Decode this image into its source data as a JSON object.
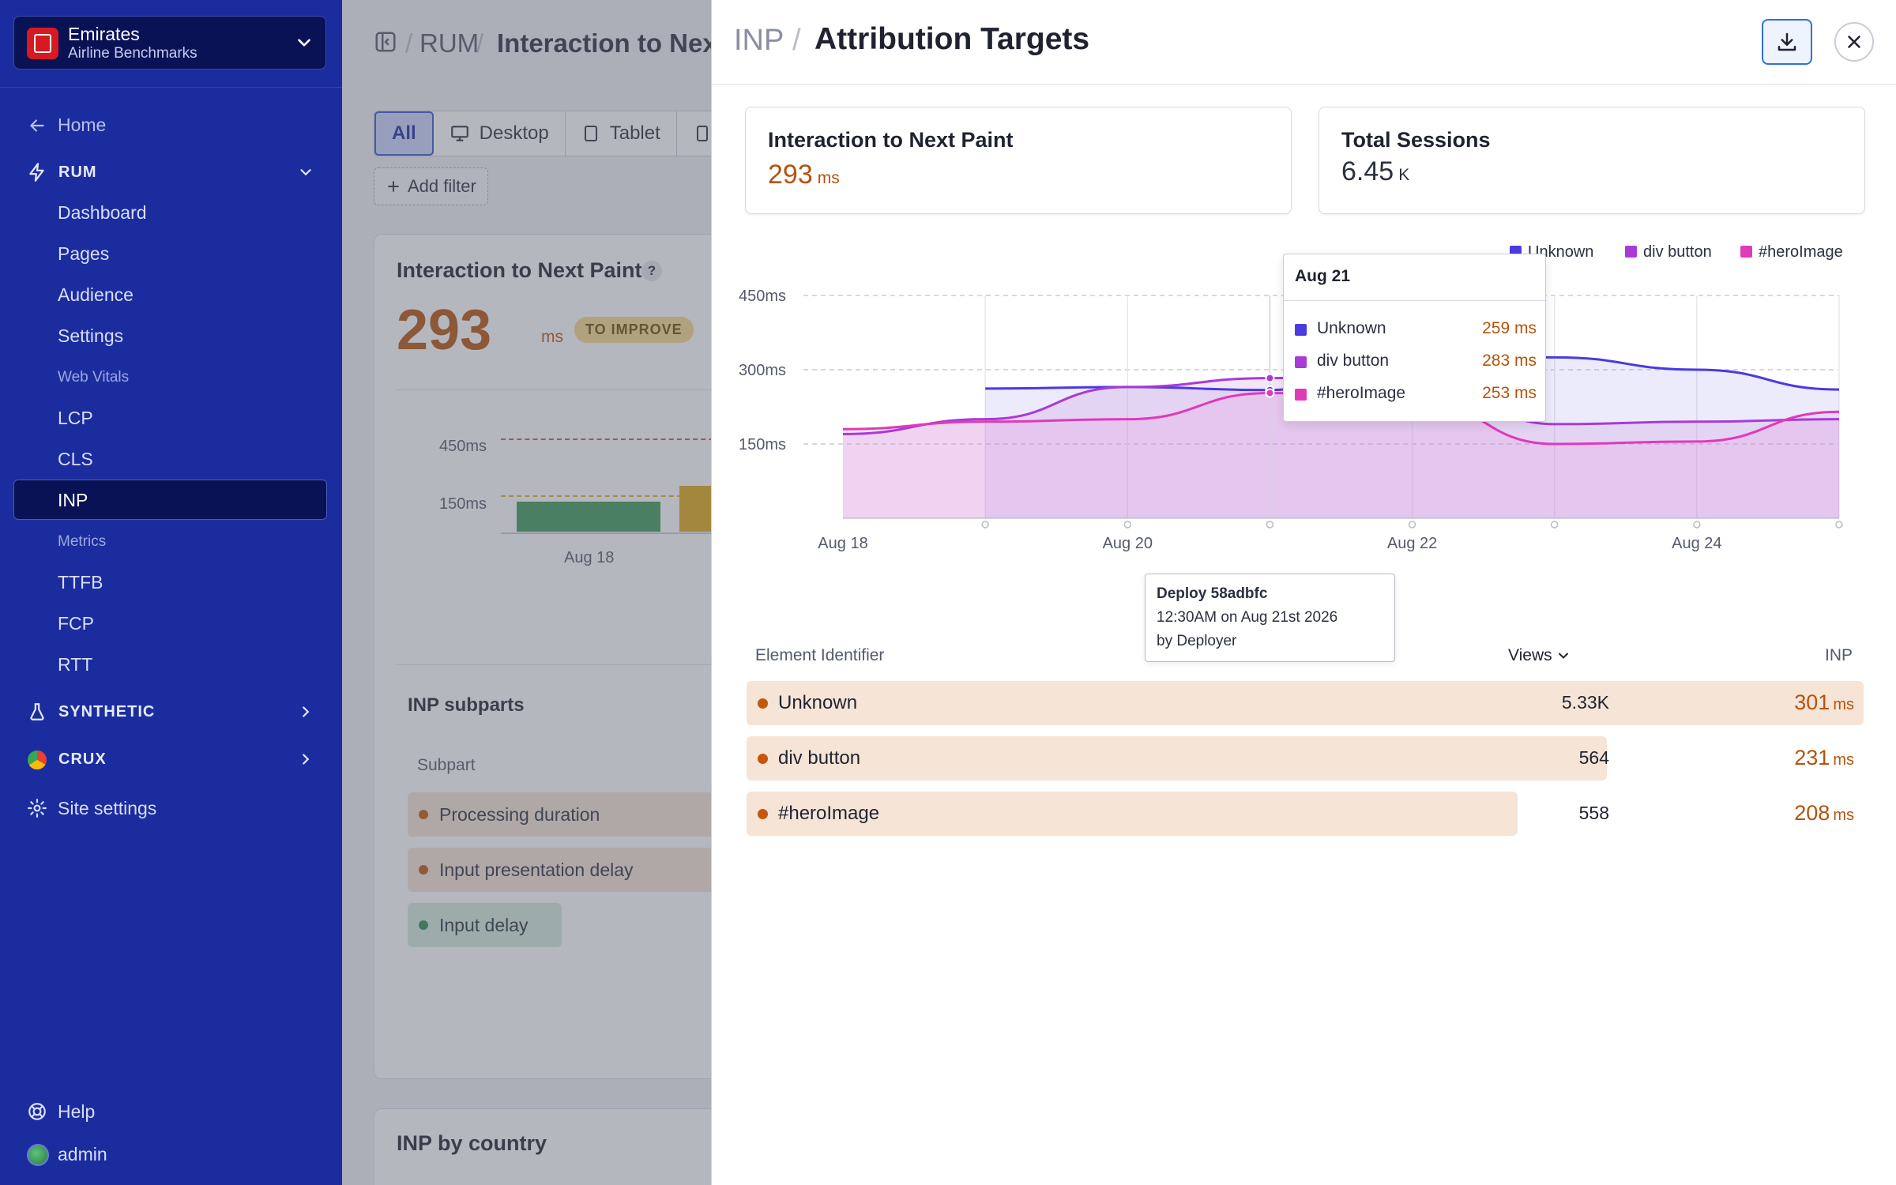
{
  "sidebar": {
    "org_name": "Emirates",
    "org_sub": "Airline Benchmarks",
    "home": "Home",
    "rum": "RUM",
    "rum_items": [
      "Dashboard",
      "Pages",
      "Audience",
      "Settings"
    ],
    "web_vitals_heading": "Web Vitals",
    "web_vitals": [
      "LCP",
      "CLS",
      "INP"
    ],
    "metrics_heading": "Metrics",
    "metrics": [
      "TTFB",
      "FCP",
      "RTT"
    ],
    "synthetic": "SYNTHETIC",
    "crux": "CRUX",
    "site_settings": "Site settings",
    "help": "Help",
    "user": "admin"
  },
  "main": {
    "crumb_root": "RUM",
    "crumb_page": "Interaction to Nex",
    "tabs": [
      "All",
      "Desktop",
      "Tablet"
    ],
    "add_filter": "Add filter",
    "card_title": "Interaction to Next Paint",
    "help_mark": "?",
    "value": "293",
    "unit": "ms",
    "badge": "TO IMPROVE",
    "mini_axis": [
      "450ms",
      "150ms"
    ],
    "mini_x": "Aug 18",
    "subparts_title": "INP subparts",
    "subpart_header": "Subpart",
    "subparts": [
      "Processing duration",
      "Input presentation delay",
      "Input delay"
    ],
    "country_title": "INP by country"
  },
  "drawer": {
    "crumb": "INP",
    "title": "Attribution Targets",
    "stat_inp_label": "Interaction to Next Paint",
    "stat_inp_value": "293",
    "stat_inp_unit": "ms",
    "stat_sessions_label": "Total Sessions",
    "stat_sessions_value": "6.45",
    "stat_sessions_unit": "K",
    "tooltip": {
      "date": "Aug 21",
      "rows": [
        {
          "name": "Unknown",
          "value": "259 ms"
        },
        {
          "name": "div button",
          "value": "283 ms"
        },
        {
          "name": "#heroImage",
          "value": "253 ms"
        }
      ]
    },
    "deploy": {
      "title": "Deploy 58adbfc",
      "when": "12:30AM on Aug 21st 2026",
      "by": "by Deployer"
    },
    "table": {
      "col_element": "Element Identifier",
      "col_views": "Views",
      "col_inp": "INP",
      "rows": [
        {
          "name": "Unknown",
          "views": "5.33K",
          "inp": "301",
          "unit": "ms",
          "share": 1.0
        },
        {
          "name": "div button",
          "views": "564",
          "inp": "231",
          "unit": "ms",
          "share": 0.77
        },
        {
          "name": "#heroImage",
          "views": "558",
          "inp": "208",
          "unit": "ms",
          "share": 0.69
        }
      ]
    }
  },
  "colors": {
    "sidebar": "#1b2d9e",
    "accent_orange": "#b5530c",
    "unknown": "#4b3ae0",
    "div_button": "#a93ad8",
    "hero_image": "#e03ab8"
  },
  "chart_data": {
    "type": "area",
    "x": [
      "Aug 18",
      "Aug 19",
      "Aug 20",
      "Aug 21",
      "Aug 22",
      "Aug 23",
      "Aug 24",
      "Aug 25"
    ],
    "x_tick_labels": [
      "Aug 18",
      "Aug 20",
      "Aug 22",
      "Aug 24"
    ],
    "y_tick_labels": [
      "450ms",
      "300ms",
      "150ms"
    ],
    "ylim": [
      0,
      450
    ],
    "legend_placement": "top-right",
    "grid": true,
    "series": [
      {
        "name": "Unknown",
        "color": "#4b3ae0",
        "values": [
          null,
          262,
          265,
          259,
          330,
          325,
          300,
          260
        ]
      },
      {
        "name": "div button",
        "color": "#a93ad8",
        "values": [
          170,
          200,
          265,
          283,
          290,
          190,
          195,
          200
        ]
      },
      {
        "name": "#heroImage",
        "color": "#e03ab8",
        "values": [
          180,
          195,
          200,
          253,
          240,
          150,
          155,
          215
        ]
      }
    ]
  }
}
